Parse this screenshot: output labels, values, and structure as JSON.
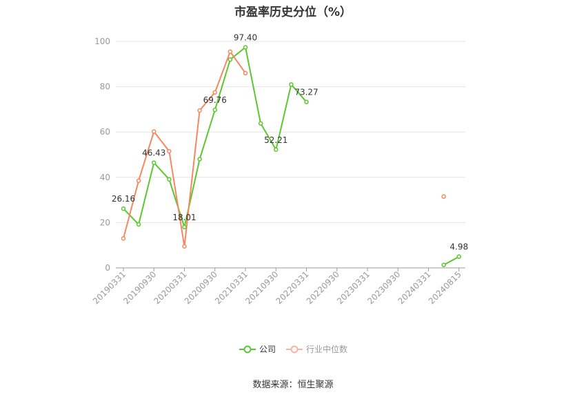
{
  "chart_data": {
    "type": "line",
    "title": "市盈率历史分位（%）",
    "x": [
      "20190331",
      "20190630",
      "20190930",
      "20191231",
      "20200331",
      "20200630",
      "20200930",
      "20201231",
      "20210331",
      "20210630",
      "20210930",
      "20211231",
      "20220331",
      "20220630",
      "20220930",
      "20221231",
      "20230331",
      "20230630",
      "20230930",
      "20231231",
      "20240331",
      "20240630",
      "20240815"
    ],
    "x_tick_labels": [
      "20190331",
      "20190930",
      "20200331",
      "20200930",
      "20210331",
      "20210930",
      "20220331",
      "20220930",
      "20230331",
      "20230930",
      "20240331",
      "20240815"
    ],
    "ylim": [
      0,
      100
    ],
    "y_ticks": [
      0,
      20,
      40,
      60,
      80,
      100
    ],
    "grid": true,
    "legend_position": "bottom",
    "series": [
      {
        "name": "公司",
        "color": "#5bc72e",
        "values": [
          26.16,
          19.2,
          46.43,
          39.1,
          18.01,
          48.0,
          69.76,
          92.0,
          97.4,
          63.8,
          52.21,
          81.0,
          73.27,
          null,
          null,
          null,
          null,
          null,
          null,
          null,
          null,
          1.3,
          4.98
        ],
        "labels": {
          "0": "26.16",
          "2": "46.43",
          "4": "18.01",
          "6": "69.76",
          "8": "97.40",
          "10": "52.21",
          "12": "73.27",
          "22": "4.98"
        }
      },
      {
        "name": "行业中位数",
        "color": "#f5875f",
        "values": [
          13.0,
          38.5,
          60.2,
          51.5,
          9.5,
          69.5,
          77.5,
          95.5,
          86.0,
          null,
          null,
          null,
          null,
          null,
          null,
          null,
          null,
          null,
          null,
          null,
          null,
          31.5,
          null
        ]
      }
    ]
  },
  "source": "数据来源：恒生聚源"
}
